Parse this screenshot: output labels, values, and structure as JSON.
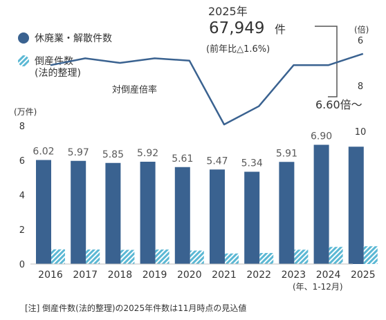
{
  "colors": {
    "closures_bar": "#3a6290",
    "bankruptcy_bar": "#5bb8d4",
    "ratio_line": "#3a6290",
    "text": "#333333",
    "value_label": "#595959"
  },
  "header": {
    "year_label": "2025年",
    "count_value": "67,949",
    "count_unit": "件",
    "yoy_text": "(前年比△1.6%)"
  },
  "chart_data": {
    "type": "bar",
    "categories": [
      "2016",
      "2017",
      "2018",
      "2019",
      "2020",
      "2021",
      "2022",
      "2023",
      "2024",
      "2025"
    ],
    "series": [
      {
        "name": "休廃業・解散件数",
        "values": [
          6.02,
          5.97,
          5.85,
          5.92,
          5.61,
          5.47,
          5.34,
          5.91,
          6.9,
          6.79
        ]
      },
      {
        "name": "倒産件数\n(法的整理)",
        "values": [
          0.85,
          0.84,
          0.82,
          0.84,
          0.78,
          0.61,
          0.64,
          0.83,
          0.99,
          1.03
        ]
      },
      {
        "name": "対倒産倍率",
        "axis": "right",
        "values": [
          7.1,
          6.8,
          7.0,
          6.8,
          6.9,
          9.7,
          8.9,
          7.1,
          7.1,
          6.6
        ]
      }
    ],
    "value_labels": [
      "6.02",
      "5.97",
      "5.85",
      "5.92",
      "5.61",
      "5.47",
      "5.34",
      "5.91",
      "6.90",
      ""
    ],
    "left_axis": {
      "unit_label": "(万件)",
      "ticks": [
        "0",
        "2",
        "4",
        "6",
        "8"
      ],
      "ylim": [
        0,
        8
      ]
    },
    "right_axis": {
      "unit_label": "(倍)",
      "ticks": [
        "6",
        "8",
        "10"
      ],
      "ylim": [
        6,
        10
      ]
    },
    "x_unit_label": "(年、1-12月)",
    "line_label": "対倒産倍率",
    "callout": "6.60倍～",
    "legend_position": "top-left"
  },
  "footnote": "[注]  倒産件数(法的整理)の2025年件数は11月時点の見込値"
}
